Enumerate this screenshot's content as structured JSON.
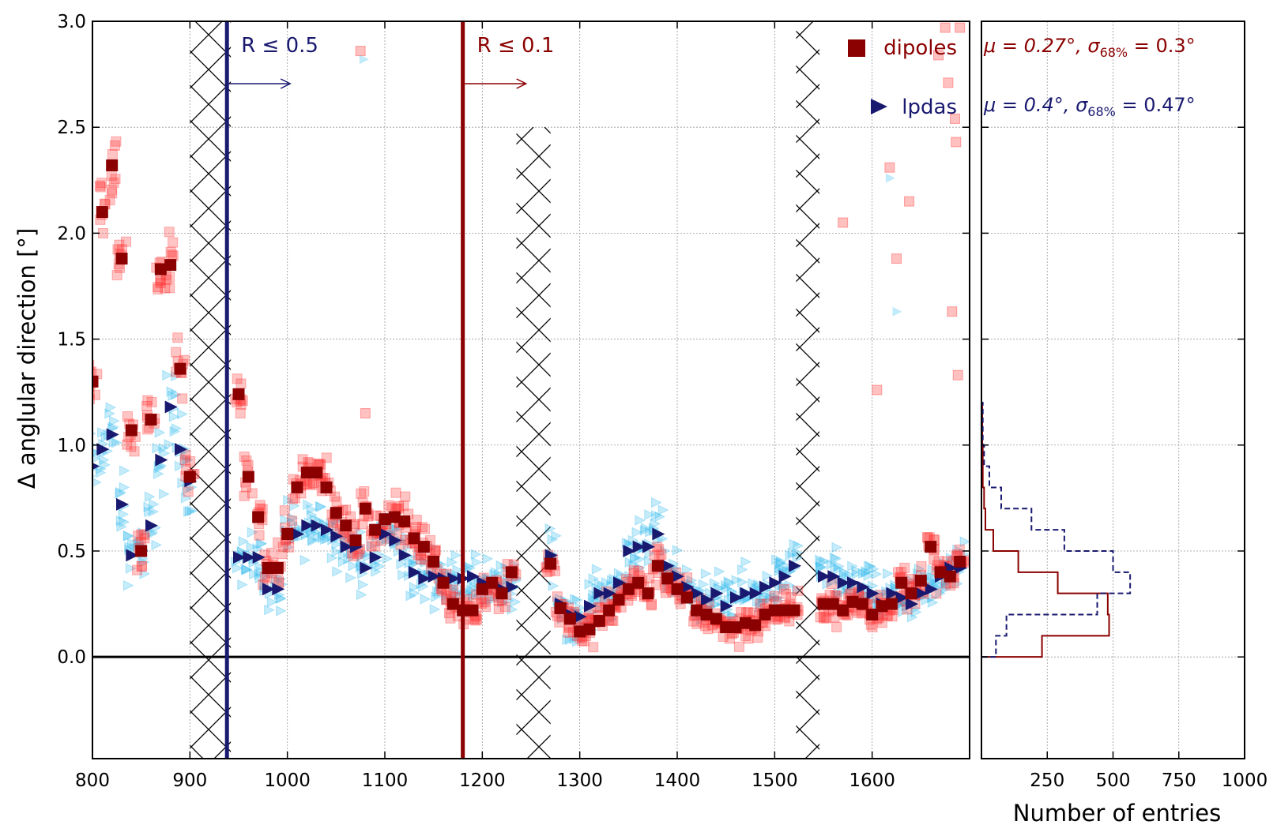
{
  "chart_data": [
    {
      "type": "scatter",
      "xlabel": "",
      "ylabel": "Δ anglular direction [°]",
      "xlim": [
        800,
        1700
      ],
      "ylim": [
        -0.48,
        3.0
      ],
      "xticks": [
        "800",
        "900",
        "1000",
        "1100",
        "1200",
        "1300",
        "1400",
        "1500",
        "1600"
      ],
      "yticks": [
        "0.0",
        "0.5",
        "1.0",
        "1.5",
        "2.0",
        "2.5",
        "3.0"
      ],
      "grid": true,
      "legend": {
        "placement": "top-right",
        "entries": [
          {
            "label": "dipoles",
            "marker": "square",
            "color": "#8b0000"
          },
          {
            "label": "lpdas",
            "marker": "triangle-right",
            "color": "#191970"
          }
        ]
      },
      "annotations": [
        {
          "text": "R ≤ 0.5",
          "x": 938,
          "color": "#191970",
          "arrow": "right"
        },
        {
          "text": "R ≤ 0.1",
          "x": 1180,
          "color": "#8b0000",
          "arrow": "right"
        }
      ],
      "hatched_ranges": [
        [
          900,
          942
        ],
        [
          1235,
          1270
        ],
        [
          1522,
          1546
        ]
      ],
      "hatched_y_top": [
        3.0,
        2.5,
        3.0
      ],
      "colors": {
        "dipoles": "#8b0000",
        "dipoles_raw": "#ff3030",
        "lpdas": "#191970",
        "lpdas_raw": "#33bbee"
      },
      "series": [
        {
          "name": "dipoles",
          "x": [
            800,
            810,
            820,
            830,
            840,
            850,
            860,
            870,
            880,
            890,
            900,
            950,
            960,
            970,
            980,
            990,
            1000,
            1010,
            1020,
            1030,
            1040,
            1050,
            1060,
            1070,
            1080,
            1090,
            1100,
            1110,
            1120,
            1130,
            1140,
            1150,
            1160,
            1170,
            1180,
            1190,
            1200,
            1210,
            1220,
            1230,
            1270,
            1280,
            1290,
            1300,
            1310,
            1320,
            1330,
            1340,
            1350,
            1360,
            1370,
            1380,
            1390,
            1400,
            1410,
            1420,
            1430,
            1440,
            1450,
            1460,
            1470,
            1480,
            1490,
            1500,
            1510,
            1520,
            1550,
            1560,
            1570,
            1580,
            1590,
            1600,
            1610,
            1620,
            1630,
            1640,
            1650,
            1660,
            1670,
            1680,
            1690
          ],
          "y": [
            1.3,
            2.1,
            2.32,
            1.88,
            1.07,
            0.5,
            1.12,
            1.83,
            1.85,
            1.36,
            0.85,
            1.24,
            0.85,
            0.66,
            0.42,
            0.42,
            0.58,
            0.8,
            0.87,
            0.87,
            0.8,
            0.68,
            0.62,
            0.55,
            0.7,
            0.6,
            0.65,
            0.66,
            0.64,
            0.56,
            0.52,
            0.45,
            0.35,
            0.25,
            0.22,
            0.22,
            0.32,
            0.35,
            0.3,
            0.4,
            0.44,
            0.23,
            0.18,
            0.12,
            0.13,
            0.17,
            0.22,
            0.27,
            0.32,
            0.35,
            0.3,
            0.43,
            0.37,
            0.32,
            0.28,
            0.22,
            0.2,
            0.18,
            0.14,
            0.14,
            0.16,
            0.15,
            0.2,
            0.22,
            0.22,
            0.22,
            0.25,
            0.25,
            0.22,
            0.26,
            0.25,
            0.2,
            0.24,
            0.25,
            0.35,
            0.3,
            0.36,
            0.52,
            0.4,
            0.38,
            0.45
          ]
        },
        {
          "name": "lpdas",
          "x": [
            800,
            810,
            820,
            830,
            840,
            850,
            860,
            870,
            880,
            890,
            900,
            950,
            960,
            970,
            980,
            990,
            1000,
            1010,
            1020,
            1030,
            1040,
            1050,
            1060,
            1070,
            1080,
            1090,
            1100,
            1110,
            1120,
            1130,
            1140,
            1150,
            1160,
            1170,
            1180,
            1190,
            1200,
            1210,
            1220,
            1230,
            1270,
            1280,
            1290,
            1300,
            1310,
            1320,
            1330,
            1340,
            1350,
            1360,
            1370,
            1380,
            1390,
            1400,
            1410,
            1420,
            1430,
            1440,
            1450,
            1460,
            1470,
            1480,
            1490,
            1500,
            1510,
            1520,
            1550,
            1560,
            1570,
            1580,
            1590,
            1600,
            1610,
            1620,
            1630,
            1640,
            1650,
            1660,
            1670,
            1680,
            1690
          ],
          "y": [
            0.9,
            0.98,
            1.05,
            0.72,
            0.48,
            0.5,
            0.62,
            0.93,
            1.18,
            0.98,
            0.83,
            0.47,
            0.47,
            0.47,
            0.32,
            0.32,
            0.58,
            0.58,
            0.62,
            0.62,
            0.6,
            0.57,
            0.52,
            0.52,
            0.42,
            0.47,
            0.58,
            0.55,
            0.48,
            0.4,
            0.37,
            0.38,
            0.37,
            0.37,
            0.37,
            0.38,
            0.35,
            0.35,
            0.32,
            0.33,
            0.48,
            0.25,
            0.2,
            0.19,
            0.24,
            0.3,
            0.3,
            0.35,
            0.5,
            0.52,
            0.52,
            0.58,
            0.43,
            0.38,
            0.33,
            0.3,
            0.27,
            0.3,
            0.24,
            0.28,
            0.3,
            0.3,
            0.33,
            0.35,
            0.38,
            0.43,
            0.38,
            0.38,
            0.35,
            0.35,
            0.33,
            0.3,
            0.25,
            0.3,
            0.28,
            0.25,
            0.3,
            0.32,
            0.38,
            0.42,
            0.42
          ]
        }
      ]
    },
    {
      "type": "histogram",
      "orientation": "horizontal",
      "xlabel": "Number of entries",
      "xlim": [
        0,
        1000
      ],
      "xticks": [
        "250",
        "500",
        "750",
        "1000"
      ],
      "ylim": [
        -0.48,
        3.0
      ],
      "grid": true,
      "bin_edges": [
        0.0,
        0.1,
        0.2,
        0.3,
        0.4,
        0.5,
        0.6,
        0.7,
        0.8,
        0.9,
        1.0,
        1.2
      ],
      "series": [
        {
          "name": "dipoles",
          "style": "solid",
          "color": "#8b0000",
          "counts": [
            230,
            485,
            480,
            290,
            140,
            45,
            15,
            10,
            5,
            5,
            3
          ],
          "annotation": {
            "mu": "μ = 0.27°, ",
            "sigma": "σ",
            "sub": "68%",
            "tail": " = 0.3°"
          }
        },
        {
          "name": "lpdas",
          "style": "dashed",
          "color": "#191970",
          "counts": [
            55,
            95,
            440,
            565,
            500,
            315,
            190,
            75,
            30,
            10,
            5
          ],
          "annotation": {
            "mu": "μ = 0.4°, ",
            "sigma": "σ",
            "sub": "68%",
            "tail": " = 0.47°"
          }
        }
      ]
    }
  ]
}
